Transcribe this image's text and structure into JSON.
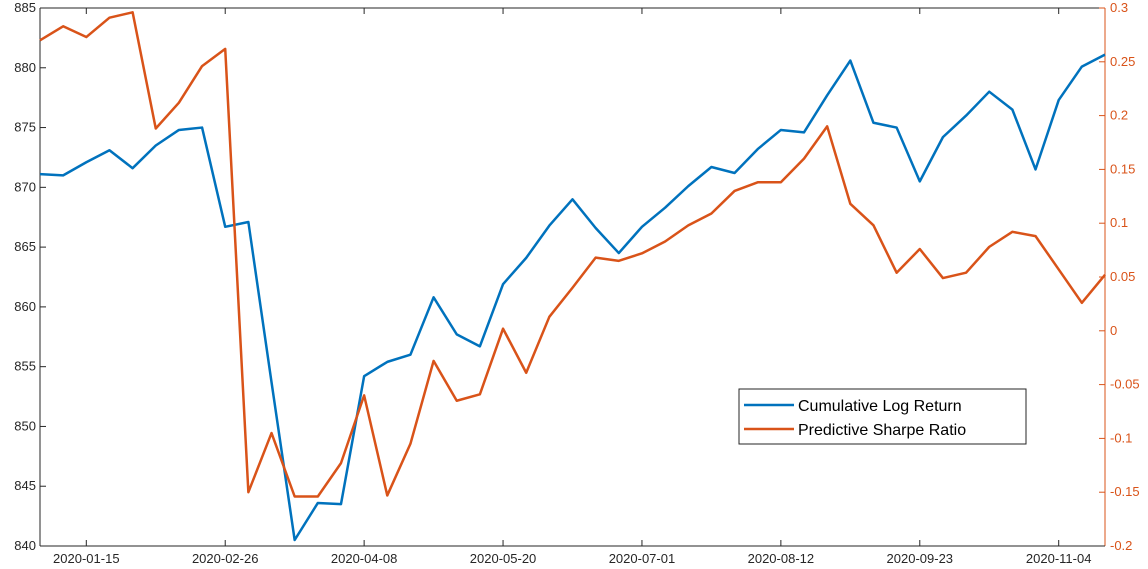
{
  "chart_data": {
    "type": "line",
    "title": "",
    "xlabel": "",
    "ylabel": "",
    "y2label": "",
    "x_ticks": [
      "2020-01-15",
      "2020-02-26",
      "2020-04-08",
      "2020-05-20",
      "2020-07-01",
      "2020-08-12",
      "2020-09-23",
      "2020-11-04"
    ],
    "ylim": [
      840,
      885
    ],
    "y_ticks": [
      840,
      845,
      850,
      855,
      860,
      865,
      870,
      875,
      880,
      885
    ],
    "y2lim": [
      -0.2,
      0.3
    ],
    "y2_ticks": [
      "-0.2",
      "-0.15",
      "-0.1",
      "-0.05",
      "0",
      "0.05",
      "0.1",
      "0.15",
      "0.2",
      "0.25",
      "0.3"
    ],
    "grid": false,
    "legend_position": "lower-right",
    "x": [
      "2020-01-01",
      "2020-01-08",
      "2020-01-15",
      "2020-01-22",
      "2020-01-29",
      "2020-02-05",
      "2020-02-12",
      "2020-02-19",
      "2020-02-26",
      "2020-03-04",
      "2020-03-11",
      "2020-03-18",
      "2020-03-25",
      "2020-04-01",
      "2020-04-08",
      "2020-04-15",
      "2020-04-22",
      "2020-04-29",
      "2020-05-06",
      "2020-05-13",
      "2020-05-20",
      "2020-05-27",
      "2020-06-03",
      "2020-06-10",
      "2020-06-17",
      "2020-06-24",
      "2020-07-01",
      "2020-07-08",
      "2020-07-15",
      "2020-07-22",
      "2020-07-29",
      "2020-08-05",
      "2020-08-12",
      "2020-08-19",
      "2020-08-26",
      "2020-09-02",
      "2020-09-09",
      "2020-09-16",
      "2020-09-23",
      "2020-09-30",
      "2020-10-07",
      "2020-10-14",
      "2020-10-21",
      "2020-10-28",
      "2020-11-04",
      "2020-11-11",
      "2020-11-18"
    ],
    "series": [
      {
        "name": "Cumulative Log Return",
        "axis": "left",
        "color": "#0072BD",
        "values": [
          871.1,
          871.0,
          872.1,
          873.1,
          871.6,
          873.5,
          874.8,
          875.0,
          866.7,
          867.1,
          853.7,
          840.5,
          843.6,
          843.5,
          854.2,
          855.4,
          856.0,
          860.8,
          857.7,
          856.7,
          861.9,
          864.1,
          866.8,
          869.0,
          866.6,
          864.5,
          866.7,
          868.3,
          870.1,
          871.7,
          871.2,
          873.2,
          874.8,
          874.6,
          877.7,
          880.6,
          875.4,
          875.0,
          870.5,
          874.2,
          876.0,
          878.0,
          876.5,
          871.5,
          877.3,
          880.1,
          881.1
        ]
      },
      {
        "name": "Predictive Sharpe Ratio",
        "axis": "right",
        "color": "#D95319",
        "values": [
          0.27,
          0.283,
          0.273,
          0.291,
          0.296,
          0.188,
          0.212,
          0.246,
          0.262,
          -0.15,
          -0.095,
          -0.154,
          -0.154,
          -0.123,
          -0.06,
          -0.153,
          -0.105,
          -0.028,
          -0.065,
          -0.059,
          0.002,
          -0.039,
          0.013,
          0.04,
          0.068,
          0.065,
          0.072,
          0.083,
          0.098,
          0.109,
          0.13,
          0.138,
          0.138,
          0.16,
          0.19,
          0.118,
          0.098,
          0.054,
          0.076,
          0.049,
          0.054,
          0.078,
          0.092,
          0.088,
          0.057,
          0.026,
          0.052
        ]
      }
    ]
  }
}
